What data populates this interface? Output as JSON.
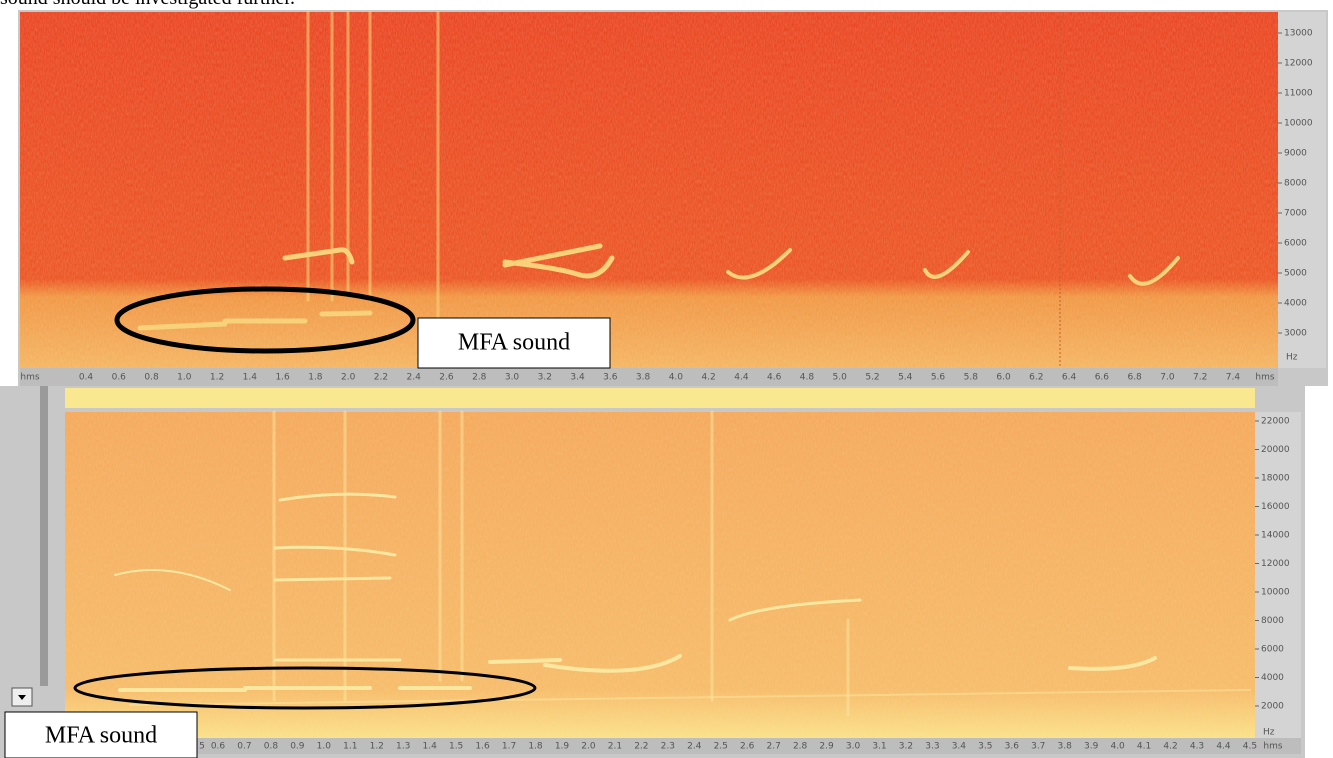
{
  "caption": "sound should be investigated further.",
  "top_panel": {
    "y_labels": [
      "13000",
      "12000",
      "11000",
      "10000",
      "9000",
      "8000",
      "7000",
      "6000",
      "5000",
      "4000",
      "3000"
    ],
    "y_unit": "Hz",
    "x_labels": [
      "hms",
      "0.4",
      "0.6",
      "0.8",
      "1.0",
      "1.2",
      "1.4",
      "1.6",
      "1.8",
      "2.0",
      "2.2",
      "2.4",
      "2.6",
      "2.8",
      "3.0",
      "3.2",
      "3.4",
      "3.6",
      "3.8",
      "4.0",
      "4.2",
      "4.4",
      "4.6",
      "4.8",
      "5.0",
      "5.2",
      "5.4",
      "5.6",
      "5.8",
      "6.0",
      "6.2",
      "6.4",
      "6.6",
      "6.8",
      "7.0",
      "7.2",
      "7.4",
      "hms"
    ],
    "annotation": "MFA sound"
  },
  "bottom_panel": {
    "y_labels": [
      "22000",
      "20000",
      "18000",
      "16000",
      "14000",
      "12000",
      "10000",
      "8000",
      "6000",
      "4000",
      "2000"
    ],
    "y_unit": "Hz",
    "x_labels": [
      "5",
      "0.6",
      "0.7",
      "0.8",
      "0.9",
      "1.0",
      "1.1",
      "1.2",
      "1.3",
      "1.4",
      "1.5",
      "1.6",
      "1.7",
      "1.8",
      "1.9",
      "2.0",
      "2.1",
      "2.2",
      "2.3",
      "2.4",
      "2.5",
      "2.6",
      "2.7",
      "2.8",
      "2.9",
      "3.0",
      "3.1",
      "3.2",
      "3.3",
      "3.4",
      "3.5",
      "3.6",
      "3.7",
      "3.8",
      "3.9",
      "4.0",
      "4.1",
      "4.2",
      "4.3",
      "4.4",
      "4.5",
      "hms"
    ],
    "annotation": "MFA sound"
  }
}
